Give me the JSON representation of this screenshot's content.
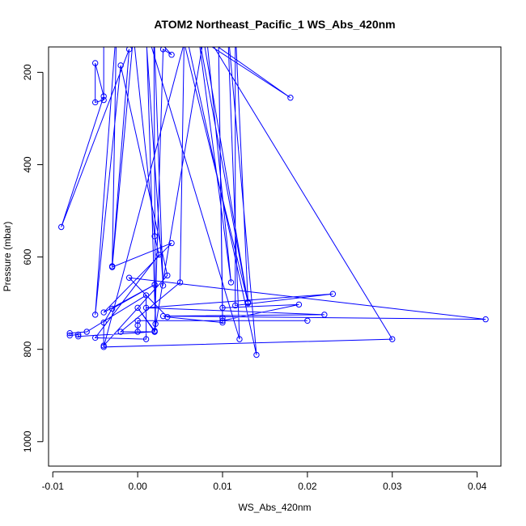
{
  "chart_data": {
    "type": "line",
    "title": "ATOM2 Northeast_Pacific_1 WS_Abs_420nm",
    "xlabel": "WS_Abs_420nm",
    "ylabel": "Pressure (mbar)",
    "xlim": [
      -0.0105,
      0.0428
    ],
    "ylim": [
      1053,
      145
    ],
    "y_reversed": true,
    "x_ticks": [
      {
        "value": -0.01,
        "label": "-0.01"
      },
      {
        "value": 0.0,
        "label": "0.00"
      },
      {
        "value": 0.01,
        "label": "0.01"
      },
      {
        "value": 0.02,
        "label": "0.02"
      },
      {
        "value": 0.03,
        "label": "0.03"
      },
      {
        "value": 0.04,
        "label": "0.04"
      }
    ],
    "y_ticks": [
      {
        "value": 200,
        "label": "200"
      },
      {
        "value": 400,
        "label": "400"
      },
      {
        "value": 600,
        "label": "600"
      },
      {
        "value": 800,
        "label": "800"
      },
      {
        "value": 1000,
        "label": "1000"
      }
    ],
    "grid": false,
    "legend": "none",
    "series_color": "#0000ff",
    "series": [
      {
        "points": [
          {
            "x": -0.004,
            "y": 140
          },
          {
            "x": -0.004,
            "y": 260
          },
          {
            "x": -0.005,
            "y": 265
          },
          {
            "x": -0.005,
            "y": 180
          },
          {
            "x": -0.004,
            "y": 252
          },
          {
            "x": -0.009,
            "y": 535
          },
          {
            "x": -0.001,
            "y": 150
          },
          {
            "x": -0.003,
            "y": 620
          },
          {
            "x": -0.0025,
            "y": 100
          },
          {
            "x": -0.005,
            "y": 725
          },
          {
            "x": -0.002,
            "y": 185
          },
          {
            "x": 0.0035,
            "y": 640
          },
          {
            "x": -0.004,
            "y": 792
          },
          {
            "x": -0.004,
            "y": 742
          },
          {
            "x": -0.003,
            "y": 712
          },
          {
            "x": 0.002,
            "y": 660
          },
          {
            "x": -0.004,
            "y": 720
          },
          {
            "x": 0.004,
            "y": 570
          },
          {
            "x": -0.003,
            "y": 622
          },
          {
            "x": -0.0005,
            "y": 120
          },
          {
            "x": 0.002,
            "y": 555
          },
          {
            "x": 0.0025,
            "y": 595
          },
          {
            "x": -0.005,
            "y": 775
          },
          {
            "x": 0.001,
            "y": 778
          },
          {
            "x": 0.001,
            "y": 683
          },
          {
            "x": -0.006,
            "y": 762
          },
          {
            "x": -0.008,
            "y": 765
          },
          {
            "x": -0.008,
            "y": 770
          },
          {
            "x": -0.007,
            "y": 768
          },
          {
            "x": -0.007,
            "y": 772
          },
          {
            "x": 0.002,
            "y": 762
          },
          {
            "x": 0.0,
            "y": 710
          },
          {
            "x": 0.002,
            "y": 760
          },
          {
            "x": 0.003,
            "y": 150
          },
          {
            "x": 0.004,
            "y": 162
          },
          {
            "x": 0.001,
            "y": 100
          },
          {
            "x": 0.0021,
            "y": 745
          },
          {
            "x": 0.0019,
            "y": 100
          },
          {
            "x": 0.003,
            "y": 662
          },
          {
            "x": 0.0009,
            "y": 100
          },
          {
            "x": 0.012,
            "y": 778
          },
          {
            "x": 0.0106,
            "y": 100
          },
          {
            "x": 0.014,
            "y": 812
          },
          {
            "x": 0.0055,
            "y": 100
          },
          {
            "x": 0.005,
            "y": 655
          },
          {
            "x": -0.002,
            "y": 762
          },
          {
            "x": 0.002,
            "y": 762
          },
          {
            "x": 0.008,
            "y": 100
          },
          {
            "x": 0.011,
            "y": 655
          },
          {
            "x": 0.007,
            "y": 100
          },
          {
            "x": 0.013,
            "y": 700
          },
          {
            "x": 0.0075,
            "y": 100
          },
          {
            "x": 0.03,
            "y": 778
          },
          {
            "x": -0.004,
            "y": 795
          },
          {
            "x": 0.006,
            "y": 100
          },
          {
            "x": 0.018,
            "y": 255
          },
          {
            "x": 0.005,
            "y": 100
          },
          {
            "x": 0.013,
            "y": 698
          },
          {
            "x": 0.0115,
            "y": 100
          },
          {
            "x": 0.0115,
            "y": 705
          },
          {
            "x": 0.023,
            "y": 680
          },
          {
            "x": 0.001,
            "y": 710
          },
          {
            "x": 0.022,
            "y": 725
          },
          {
            "x": 0.003,
            "y": 728
          },
          {
            "x": 0.041,
            "y": 735
          },
          {
            "x": -0.001,
            "y": 645
          },
          {
            "x": 0.0035,
            "y": 730
          },
          {
            "x": 0.01,
            "y": 742
          },
          {
            "x": 0.01,
            "y": 732
          },
          {
            "x": 0.0095,
            "y": 100
          },
          {
            "x": 0.01,
            "y": 710
          },
          {
            "x": 0.019,
            "y": 703
          },
          {
            "x": 0.01,
            "y": 738
          },
          {
            "x": 0.02,
            "y": 738
          },
          {
            "x": 0.0,
            "y": 738
          },
          {
            "x": 0.0,
            "y": 748
          },
          {
            "x": 0.0,
            "y": 762
          }
        ]
      }
    ]
  }
}
